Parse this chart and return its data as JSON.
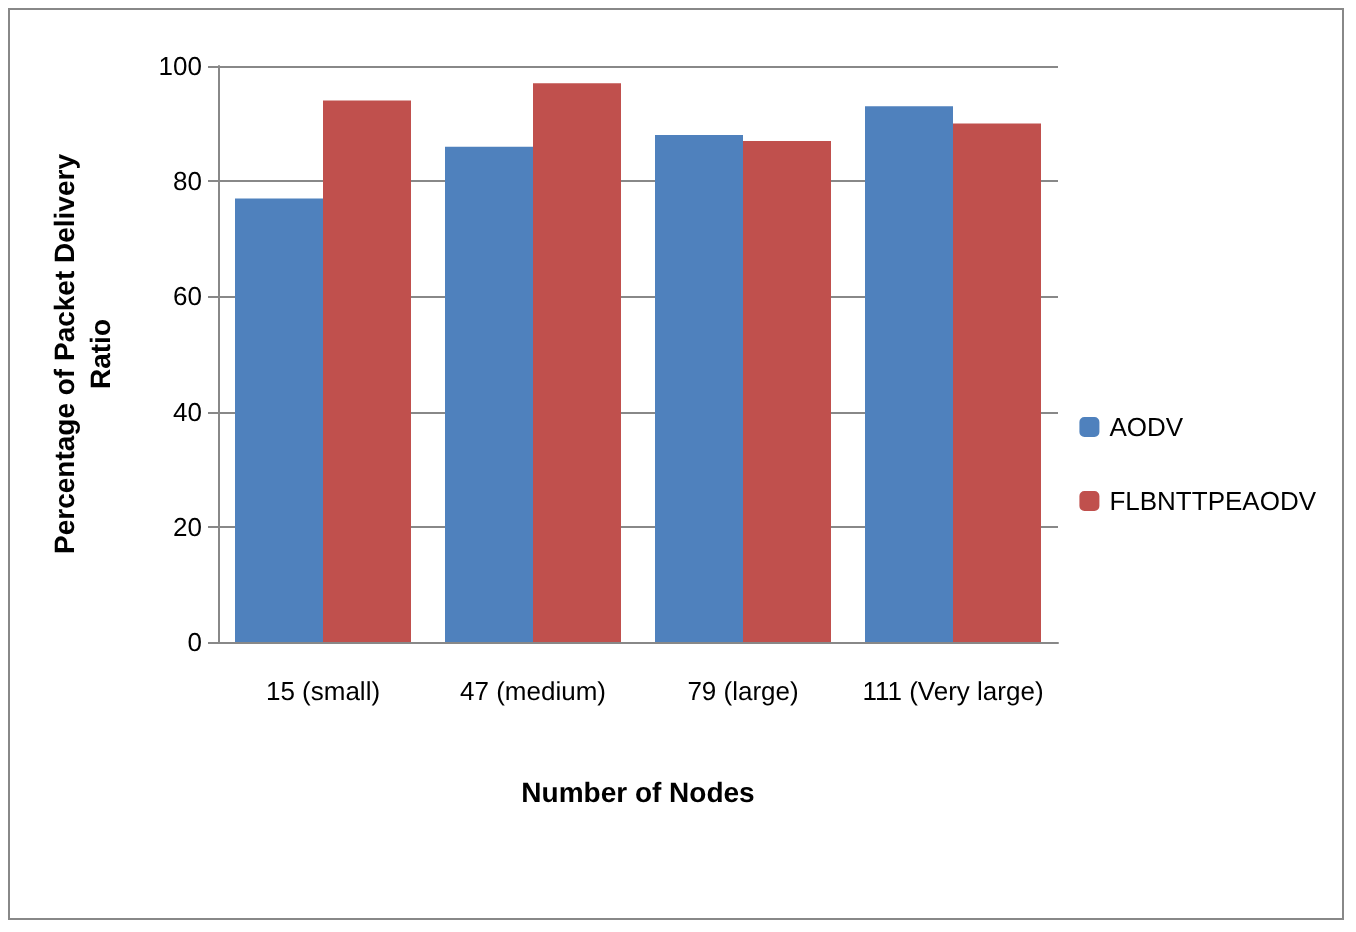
{
  "chart_data": {
    "type": "bar",
    "xlabel": "Number of Nodes",
    "ylabel": "Percentage of Packet Delivery Ratio",
    "categories": [
      "15 (small)",
      "47 (medium)",
      "79 (large)",
      "111 (Very large)"
    ],
    "series": [
      {
        "name": "AODV",
        "color": "#4f81bd",
        "values": [
          77,
          86,
          88,
          93
        ]
      },
      {
        "name": "FLBNTTPEAODV",
        "color": "#c0504d",
        "values": [
          94,
          97,
          87,
          90
        ]
      }
    ],
    "ylim": [
      0,
      100
    ],
    "yticks": [
      0,
      20,
      40,
      60,
      80,
      100
    ],
    "grid": "y",
    "legend": "right"
  }
}
